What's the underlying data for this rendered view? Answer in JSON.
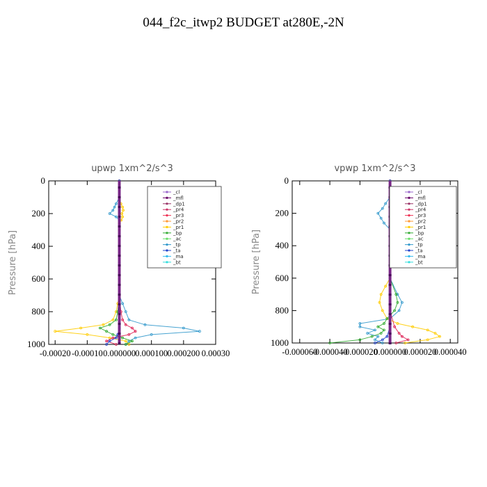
{
  "title": "044_f2c_itwp2  BUDGET at280E,-2N",
  "chart_data": [
    {
      "type": "line",
      "panel_title": "upwp   1xm^2/s^3",
      "ylabel": "Pressure [hPa]",
      "yticks": [
        0,
        200,
        400,
        600,
        800,
        1000
      ],
      "ylim": [
        1000,
        0
      ],
      "xticks": [
        "-0.00020",
        "-0.00010",
        "0.000000",
        "0.000100",
        "0.000200",
        "0.00030"
      ],
      "xtick_values": [
        -0.0002,
        -0.0001,
        0.0,
        0.0001,
        0.0002,
        0.0003
      ],
      "xlim": [
        -0.00022,
        0.0003
      ],
      "legend": [
        "_cl",
        "_mfl",
        "_dp1",
        "_pr4",
        "_pr3",
        "_pr2",
        "_pr1",
        "_bp",
        "_ac",
        "_tp",
        "_ta",
        "_ma",
        "_bt"
      ],
      "legend_placement": "upper-right",
      "series": [
        {
          "name": "_tp",
          "color": "#3399cc",
          "y": [
            0,
            100,
            140,
            160,
            180,
            200,
            220,
            240,
            260,
            300,
            400,
            500,
            600,
            700,
            750,
            800,
            850,
            880,
            900,
            920,
            940,
            960,
            980,
            1000
          ],
          "x": [
            0,
            0,
            -1e-05,
            -1.5e-05,
            -2e-05,
            -3e-05,
            -1e-05,
            0,
            0,
            0,
            0,
            0,
            0,
            0,
            1e-05,
            2e-05,
            3e-05,
            8e-05,
            0.0002,
            0.00025,
            0.0001,
            5e-05,
            3e-05,
            2e-05
          ]
        },
        {
          "name": "_pr1",
          "color": "#ffcc00",
          "y": [
            0,
            100,
            140,
            160,
            180,
            200,
            220,
            240,
            260,
            300,
            400,
            600,
            700,
            750,
            800,
            850,
            880,
            900,
            920,
            940,
            960,
            980,
            1000
          ],
          "x": [
            0,
            0,
            5e-06,
            1e-05,
            1.2e-05,
            8e-06,
            1e-05,
            6e-06,
            0,
            0,
            0,
            0,
            0,
            -5e-06,
            -1e-05,
            -2e-05,
            -5e-05,
            -0.00012,
            -0.0002,
            -0.0001,
            -3e-05,
            2e-05,
            3e-05
          ]
        },
        {
          "name": "_bp",
          "color": "#33aa33",
          "y": [
            0,
            600,
            700,
            800,
            850,
            880,
            900,
            920,
            940,
            960,
            980,
            1000
          ],
          "x": [
            0,
            0,
            0,
            -5e-06,
            -1e-05,
            -3e-05,
            -6e-05,
            -4e-05,
            -2e-05,
            1e-05,
            4e-05,
            2e-05
          ]
        },
        {
          "name": "_pr3",
          "color": "#dd2255",
          "y": [
            0,
            700,
            800,
            850,
            880,
            900,
            920,
            940,
            960,
            980,
            1000
          ],
          "x": [
            0,
            0,
            5e-06,
            1e-05,
            2e-05,
            4e-05,
            5e-05,
            3e-05,
            -2e-05,
            -4e-05,
            -1e-05
          ]
        },
        {
          "name": "_ta",
          "color": "#2244cc",
          "y": [
            0,
            900,
            940,
            960,
            980,
            1000
          ],
          "x": [
            0,
            0,
            -5e-06,
            -1e-05,
            -3e-05,
            -4e-05
          ]
        },
        {
          "name": "_mfl",
          "color": "#660066",
          "y": [
            0,
            100,
            200,
            300,
            400,
            500,
            600,
            700,
            800,
            900,
            1000
          ],
          "x": [
            0,
            0,
            0,
            0,
            0,
            0,
            0,
            0,
            0,
            0,
            0
          ]
        }
      ]
    },
    {
      "type": "line",
      "panel_title": "vpwp   1xm^2/s^3",
      "ylabel": "Pressure [hPa]",
      "yticks": [
        0,
        200,
        400,
        600,
        800,
        1000
      ],
      "ylim": [
        1000,
        0
      ],
      "xticks": [
        "-0.000060",
        "-0.000040",
        "-0.000020",
        "0.000000",
        "0.000020",
        "0.000040"
      ],
      "xtick_values": [
        -6e-05,
        -4e-05,
        -2e-05,
        0.0,
        2e-05,
        4e-05
      ],
      "xlim": [
        -6.5e-05,
        4.5e-05
      ],
      "legend": [
        "_cl",
        "_mfl",
        "_dp1",
        "_pr4",
        "_pr3",
        "_pr2",
        "_pr1",
        "_bp",
        "_ac",
        "_tp",
        "_ta",
        "_ma",
        "_bt"
      ],
      "legend_placement": "upper-right",
      "series": [
        {
          "name": "_tp",
          "color": "#3399cc",
          "y": [
            0,
            100,
            140,
            170,
            200,
            230,
            260,
            300,
            400,
            600,
            700,
            750,
            800,
            850,
            880,
            900,
            920,
            940,
            960,
            980,
            1000
          ],
          "x": [
            0,
            0,
            -3e-06,
            -5e-06,
            -8e-06,
            -6e-06,
            -4e-06,
            0,
            0,
            0,
            5e-06,
            8e-06,
            6e-06,
            0,
            -2e-05,
            -2e-05,
            -1e-05,
            -1.5e-05,
            -8e-06,
            -1e-05,
            -5e-06
          ]
        },
        {
          "name": "_pr1",
          "color": "#ffcc00",
          "y": [
            0,
            100,
            140,
            170,
            200,
            230,
            260,
            300,
            400,
            600,
            650,
            700,
            750,
            800,
            850,
            880,
            900,
            920,
            940,
            960,
            980,
            1000
          ],
          "x": [
            0,
            0,
            2e-06,
            4e-06,
            3e-06,
            2e-06,
            0,
            0,
            0,
            0,
            -3e-06,
            -6e-06,
            -7e-06,
            -5e-06,
            -2e-06,
            5e-06,
            1.5e-05,
            2.5e-05,
            3e-05,
            3.3e-05,
            2.5e-05,
            1e-05
          ]
        },
        {
          "name": "_bp",
          "color": "#33aa33",
          "y": [
            0,
            600,
            700,
            750,
            800,
            850,
            880,
            900,
            920,
            940,
            960,
            980,
            1000
          ],
          "x": [
            0,
            0,
            4e-06,
            5e-06,
            3e-06,
            -2e-06,
            -4e-06,
            -8e-06,
            -4e-06,
            -6e-06,
            -1.2e-05,
            -2e-05,
            -4e-05
          ]
        },
        {
          "name": "_pr3",
          "color": "#dd2255",
          "y": [
            0,
            800,
            900,
            940,
            960,
            980,
            1000
          ],
          "x": [
            0,
            0,
            3e-06,
            6e-06,
            8e-06,
            1.2e-05,
            4e-06
          ]
        },
        {
          "name": "_ta",
          "color": "#2244cc",
          "y": [
            0,
            900,
            960,
            980,
            1000
          ],
          "x": [
            0,
            0,
            -2e-06,
            -5e-06,
            -1e-05
          ]
        },
        {
          "name": "_mfl",
          "color": "#660066",
          "y": [
            0,
            100,
            200,
            300,
            400,
            500,
            600,
            700,
            800,
            900,
            1000
          ],
          "x": [
            0,
            0,
            0,
            0,
            0,
            0,
            0,
            0,
            0,
            0,
            0
          ]
        }
      ]
    }
  ],
  "legend_colors": [
    "#9966cc",
    "#660066",
    "#993366",
    "#cc3366",
    "#ee3355",
    "#ff9933",
    "#ffcc00",
    "#33aa33",
    "#66dd66",
    "#3399cc",
    "#2244cc",
    "#33bbee",
    "#33dddd"
  ]
}
